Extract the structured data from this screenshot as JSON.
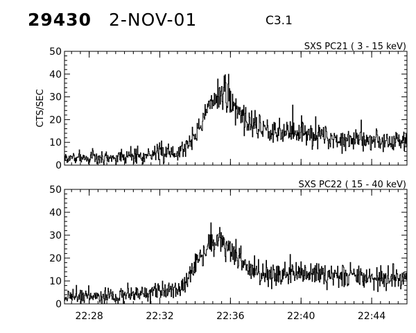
{
  "header": {
    "event_id": "29430",
    "date": "2-NOV-01",
    "flare_class": "C3.1"
  },
  "chart_data": [
    {
      "type": "line",
      "title": "SXS PC21  (  3 - 15 keV)",
      "ylabel": "CTS/SEC",
      "xlabel": "",
      "x_ticks": [
        "22:28",
        "22:32",
        "22:36",
        "22:40",
        "22:44"
      ],
      "xlim": [
        "22:26:36",
        "22:46:00"
      ],
      "y_ticks": [
        "0",
        "10",
        "20",
        "30",
        "40",
        "50"
      ],
      "ylim": [
        0,
        50
      ],
      "series": [
        {
          "time_min": [
            0,
            2,
            4,
            5,
            6,
            6.5,
            7,
            7.5,
            8,
            8.3,
            8.8,
            9.2,
            9.4,
            9.8,
            10.2,
            10.6,
            11,
            12,
            13,
            14,
            15,
            16,
            17,
            18,
            19,
            19.4
          ],
          "mean_counts": [
            3,
            3,
            4,
            5,
            5.5,
            6,
            9,
            15,
            22,
            28,
            31,
            30,
            28,
            24,
            21,
            18,
            17,
            15,
            14,
            13,
            12,
            11.5,
            11,
            10.5,
            10.5,
            10
          ],
          "noise_amplitude": [
            2.5,
            2.5,
            2.5,
            2.8,
            3,
            3.2,
            3.5,
            4,
            4.5,
            5,
            5.5,
            5.5,
            5.5,
            5.2,
            5,
            4.8,
            4.6,
            4.4,
            4.2,
            4,
            3.8,
            3.6,
            3.5,
            3.4,
            3.4,
            3.4
          ],
          "seed": 7
        }
      ]
    },
    {
      "type": "line",
      "title": "SXS PC22  ( 15 - 40 keV)",
      "ylabel": "",
      "xlabel": "",
      "x_ticks": [
        "22:28",
        "22:32",
        "22:36",
        "22:40",
        "22:44"
      ],
      "xlim": [
        "22:26:36",
        "22:46:00"
      ],
      "y_ticks": [
        "0",
        "10",
        "20",
        "30",
        "40",
        "50"
      ],
      "ylim": [
        0,
        50
      ],
      "series": [
        {
          "time_min": [
            0,
            2,
            4,
            5,
            6,
            6.5,
            7,
            7.5,
            8,
            8.3,
            8.8,
            9.2,
            9.4,
            9.8,
            10.2,
            10.6,
            11,
            12,
            13,
            14,
            15,
            16,
            17,
            18,
            19,
            19.4
          ],
          "mean_counts": [
            3,
            3.5,
            4,
            5,
            5.5,
            6,
            10,
            18,
            23,
            26,
            27,
            25,
            22,
            19,
            17,
            15,
            14,
            13,
            13,
            12.5,
            12,
            12,
            11.5,
            11,
            11,
            10.5
          ],
          "noise_amplitude": [
            2.8,
            2.8,
            2.8,
            3,
            3.2,
            3.4,
            3.8,
            4.2,
            4.8,
            5.2,
            5.5,
            5.5,
            5.3,
            5,
            4.8,
            4.6,
            4.4,
            4.2,
            4.1,
            4,
            3.9,
            3.8,
            3.7,
            3.6,
            3.6,
            3.6
          ],
          "seed": 19
        }
      ]
    }
  ]
}
